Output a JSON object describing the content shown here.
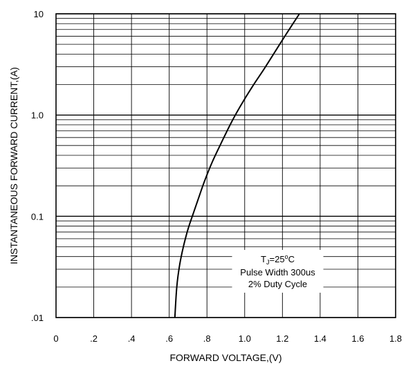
{
  "chart_data": {
    "type": "line",
    "title": "",
    "xlabel": "FORWARD VOLTAGE,(V)",
    "ylabel": "INSTANTANEOUS FORWARD CURRENT,(A)",
    "xlim": [
      0,
      1.8
    ],
    "ylim": [
      0.01,
      10
    ],
    "yscale": "log",
    "grid": true,
    "x_ticks": [
      {
        "value": 0,
        "label": "0"
      },
      {
        "value": 0.2,
        "label": ".2"
      },
      {
        "value": 0.4,
        "label": ".4"
      },
      {
        "value": 0.6,
        "label": ".6"
      },
      {
        "value": 0.8,
        "label": ".8"
      },
      {
        "value": 1.0,
        "label": "1.0"
      },
      {
        "value": 1.2,
        "label": "1.2"
      },
      {
        "value": 1.4,
        "label": "1.4"
      },
      {
        "value": 1.6,
        "label": "1.6"
      },
      {
        "value": 1.8,
        "label": "1.8"
      }
    ],
    "y_ticks": [
      {
        "value": 0.01,
        "label": ".01"
      },
      {
        "value": 0.1,
        "label": "0.1"
      },
      {
        "value": 1,
        "label": "1.0"
      },
      {
        "value": 10,
        "label": "10"
      }
    ],
    "series": [
      {
        "x": [
          0.63,
          0.64,
          0.655,
          0.675,
          0.7,
          0.73,
          0.76,
          0.79,
          0.83,
          0.88,
          0.93,
          0.98,
          1.04,
          1.1,
          1.16,
          1.22,
          1.29
        ],
        "y": [
          0.01,
          0.02,
          0.033,
          0.05,
          0.075,
          0.11,
          0.16,
          0.23,
          0.35,
          0.55,
          0.85,
          1.25,
          1.9,
          2.8,
          4.2,
          6.3,
          10
        ],
        "color": "#000000"
      }
    ],
    "annotation": {
      "tj_prefix": "T",
      "tj_sub": "J",
      "tj_value": "=25",
      "tj_degree": "o",
      "tj_unit": "C",
      "line2": "Pulse Width 300us",
      "line3": "2% Duty Cycle",
      "x": 1.175,
      "y": 0.03
    }
  }
}
